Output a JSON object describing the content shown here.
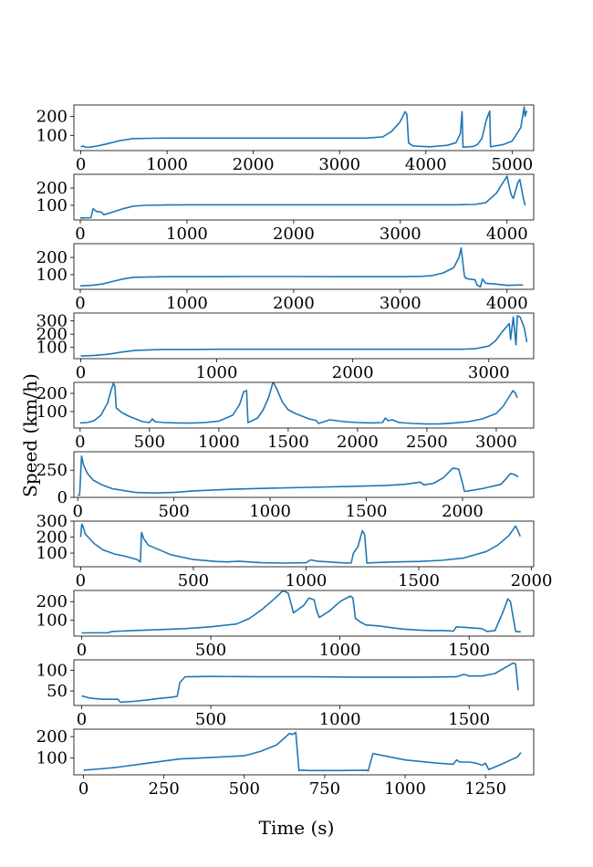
{
  "figure": {
    "xlabel": "Time (s)",
    "ylabel": "Speed (km/h)"
  },
  "chart_data": [
    {
      "type": "line",
      "color": "#1f77b4",
      "xlim": [
        -80,
        5250
      ],
      "ylim": [
        20,
        260
      ],
      "xticks": [
        0,
        1000,
        2000,
        3000,
        4000,
        5000
      ],
      "yticks": [
        100,
        200
      ],
      "x": [
        0,
        30,
        60,
        100,
        200,
        300,
        450,
        600,
        800,
        1000,
        1500,
        2000,
        2500,
        3000,
        3300,
        3500,
        3600,
        3700,
        3760,
        3780,
        3800,
        3850,
        3950,
        4050,
        4150,
        4250,
        4350,
        4400,
        4420,
        4430,
        4500,
        4550,
        4600,
        4650,
        4700,
        4740,
        4750,
        4800,
        4900,
        5000,
        5100,
        5140,
        5150,
        5170
      ],
      "y": [
        40,
        44,
        37,
        38,
        45,
        55,
        72,
        83,
        85,
        86,
        86,
        86,
        86,
        86,
        86,
        92,
        120,
        170,
        225,
        210,
        60,
        45,
        42,
        40,
        44,
        48,
        62,
        110,
        225,
        38,
        40,
        42,
        52,
        85,
        180,
        228,
        40,
        44,
        52,
        70,
        140,
        250,
        200,
        230
      ]
    },
    {
      "type": "line",
      "color": "#1f77b4",
      "xlim": [
        -60,
        4250
      ],
      "ylim": [
        15,
        280
      ],
      "xticks": [
        0,
        1000,
        2000,
        3000,
        4000
      ],
      "yticks": [
        100,
        200
      ],
      "x": [
        0,
        100,
        120,
        150,
        200,
        220,
        300,
        400,
        500,
        600,
        800,
        1000,
        1500,
        2000,
        2500,
        3000,
        3500,
        3700,
        3800,
        3900,
        3950,
        4000,
        4020,
        4040,
        4060,
        4100,
        4120,
        4150,
        4170
      ],
      "y": [
        26,
        28,
        80,
        65,
        60,
        45,
        60,
        80,
        95,
        100,
        102,
        103,
        103,
        103,
        103,
        103,
        103,
        105,
        115,
        170,
        220,
        270,
        210,
        160,
        140,
        230,
        250,
        150,
        100
      ]
    },
    {
      "type": "line",
      "color": "#1f77b4",
      "xlim": [
        -60,
        4250
      ],
      "ylim": [
        15,
        280
      ],
      "xticks": [
        0,
        1000,
        2000,
        3000,
        4000
      ],
      "yticks": [
        100,
        200
      ],
      "x": [
        0,
        100,
        200,
        300,
        400,
        500,
        800,
        1000,
        1500,
        2000,
        2500,
        3000,
        3200,
        3300,
        3400,
        3500,
        3550,
        3570,
        3600,
        3610,
        3640,
        3700,
        3720,
        3750,
        3770,
        3800,
        3900,
        4000,
        4100,
        4150
      ],
      "y": [
        35,
        38,
        45,
        60,
        75,
        85,
        88,
        88,
        89,
        89,
        88,
        88,
        90,
        95,
        110,
        140,
        200,
        255,
        95,
        80,
        75,
        70,
        40,
        28,
        75,
        50,
        45,
        38,
        40,
        40
      ]
    },
    {
      "type": "line",
      "color": "#1f77b4",
      "xlim": [
        -50,
        3330
      ],
      "ylim": [
        15,
        360
      ],
      "xticks": [
        0,
        1000,
        2000,
        3000
      ],
      "yticks": [
        100,
        200,
        300
      ],
      "x": [
        0,
        50,
        100,
        200,
        300,
        400,
        600,
        800,
        1000,
        1500,
        2000,
        2500,
        2800,
        2900,
        3000,
        3050,
        3100,
        3150,
        3160,
        3180,
        3200,
        3210,
        3230,
        3260,
        3280
      ],
      "y": [
        35,
        37,
        40,
        48,
        65,
        78,
        85,
        85,
        86,
        86,
        86,
        86,
        86,
        90,
        110,
        150,
        220,
        280,
        160,
        330,
        120,
        340,
        330,
        250,
        140
      ]
    },
    {
      "type": "line",
      "color": "#1f77b4",
      "xlim": [
        -45,
        3270
      ],
      "ylim": [
        10,
        260
      ],
      "xticks": [
        0,
        500,
        1000,
        1500,
        2000,
        2500,
        3000
      ],
      "yticks": [
        100,
        200
      ],
      "x": [
        0,
        50,
        100,
        150,
        200,
        220,
        240,
        250,
        260,
        300,
        350,
        400,
        450,
        500,
        520,
        540,
        600,
        700,
        800,
        900,
        1000,
        1100,
        1150,
        1180,
        1200,
        1210,
        1240,
        1280,
        1320,
        1360,
        1390,
        1400,
        1420,
        1460,
        1500,
        1550,
        1600,
        1650,
        1700,
        1720,
        1800,
        1900,
        2000,
        2100,
        2180,
        2200,
        2220,
        2250,
        2300,
        2400,
        2500,
        2600,
        2700,
        2800,
        2900,
        3000,
        3050,
        3100,
        3120,
        3140,
        3150
      ],
      "y": [
        38,
        40,
        50,
        80,
        150,
        210,
        255,
        240,
        120,
        95,
        75,
        60,
        45,
        40,
        60,
        45,
        40,
        38,
        37,
        40,
        48,
        80,
        140,
        210,
        215,
        40,
        50,
        65,
        110,
        180,
        260,
        250,
        220,
        150,
        110,
        90,
        75,
        60,
        52,
        35,
        55,
        45,
        40,
        38,
        40,
        65,
        50,
        55,
        40,
        35,
        32,
        33,
        38,
        45,
        60,
        90,
        130,
        190,
        215,
        200,
        175
      ]
    },
    {
      "type": "line",
      "color": "#1f77b4",
      "xlim": [
        -20,
        2370
      ],
      "ylim": [
        0,
        420
      ],
      "xticks": [
        0,
        500,
        1000,
        1500,
        2000
      ],
      "yticks": [
        0,
        250
      ],
      "x": [
        0,
        10,
        20,
        30,
        50,
        80,
        120,
        180,
        250,
        300,
        400,
        500,
        600,
        800,
        1000,
        1200,
        1400,
        1600,
        1700,
        1780,
        1800,
        1850,
        1900,
        1950,
        1980,
        2000,
        2010,
        2030,
        2100,
        2200,
        2250,
        2270,
        2290
      ],
      "y": [
        20,
        22,
        380,
        300,
        220,
        160,
        120,
        80,
        60,
        45,
        40,
        45,
        60,
        75,
        85,
        92,
        100,
        110,
        120,
        140,
        115,
        130,
        180,
        270,
        260,
        130,
        55,
        60,
        80,
        120,
        220,
        210,
        190
      ]
    },
    {
      "type": "line",
      "color": "#1f77b4",
      "xlim": [
        -30,
        2010
      ],
      "ylim": [
        15,
        300
      ],
      "xticks": [
        0,
        500,
        1000,
        1500,
        2000
      ],
      "yticks": [
        100,
        200,
        300
      ],
      "x": [
        0,
        5,
        10,
        20,
        60,
        100,
        150,
        200,
        250,
        265,
        270,
        280,
        300,
        400,
        500,
        600,
        650,
        700,
        800,
        900,
        1000,
        1020,
        1050,
        1100,
        1150,
        1200,
        1210,
        1230,
        1250,
        1260,
        1270,
        1300,
        1400,
        1500,
        1600,
        1700,
        1800,
        1850,
        1900,
        1930,
        1940,
        1950
      ],
      "y": [
        200,
        280,
        270,
        220,
        160,
        120,
        95,
        80,
        60,
        45,
        230,
        190,
        150,
        90,
        60,
        48,
        45,
        50,
        40,
        38,
        40,
        58,
        50,
        45,
        40,
        38,
        100,
        140,
        240,
        215,
        38,
        40,
        45,
        48,
        55,
        70,
        110,
        150,
        210,
        270,
        240,
        205
      ]
    },
    {
      "type": "line",
      "color": "#1f77b4",
      "xlim": [
        -30,
        1750
      ],
      "ylim": [
        15,
        260
      ],
      "xticks": [
        0,
        500,
        1000,
        1500
      ],
      "yticks": [
        100,
        200
      ],
      "x": [
        0,
        100,
        120,
        200,
        300,
        400,
        500,
        600,
        650,
        700,
        750,
        780,
        800,
        820,
        860,
        880,
        900,
        910,
        920,
        960,
        1000,
        1040,
        1050,
        1060,
        1080,
        1100,
        1150,
        1200,
        1250,
        1300,
        1350,
        1400,
        1440,
        1450,
        1500,
        1550,
        1570,
        1600,
        1630,
        1650,
        1660,
        1680,
        1700
      ],
      "y": [
        32,
        33,
        40,
        45,
        50,
        55,
        65,
        80,
        110,
        160,
        220,
        260,
        245,
        140,
        180,
        220,
        210,
        150,
        115,
        150,
        200,
        230,
        220,
        110,
        90,
        75,
        70,
        60,
        52,
        48,
        45,
        45,
        42,
        65,
        60,
        55,
        40,
        45,
        140,
        215,
        200,
        40,
        38
      ]
    },
    {
      "type": "line",
      "color": "#1f77b4",
      "xlim": [
        -30,
        1750
      ],
      "ylim": [
        15,
        125
      ],
      "xticks": [
        0,
        500,
        1000,
        1500
      ],
      "yticks": [
        50,
        100
      ],
      "x": [
        0,
        30,
        80,
        140,
        150,
        200,
        250,
        300,
        350,
        370,
        380,
        400,
        500,
        700,
        900,
        1100,
        1300,
        1450,
        1480,
        1500,
        1550,
        1600,
        1650,
        1670,
        1680,
        1690
      ],
      "y": [
        38,
        33,
        30,
        30,
        23,
        25,
        28,
        32,
        35,
        37,
        70,
        84,
        85,
        84,
        84,
        83,
        83,
        84,
        90,
        86,
        86,
        92,
        110,
        117,
        115,
        52
      ]
    },
    {
      "type": "line",
      "color": "#1f77b4",
      "xlim": [
        -30,
        1400
      ],
      "ylim": [
        20,
        235
      ],
      "xticks": [
        0,
        250,
        500,
        750,
        1000,
        1250
      ],
      "yticks": [
        100,
        200
      ],
      "x": [
        0,
        50,
        100,
        200,
        300,
        400,
        500,
        550,
        600,
        630,
        640,
        650,
        660,
        670,
        680,
        700,
        800,
        880,
        885,
        900,
        1000,
        1100,
        1150,
        1160,
        1170,
        1200,
        1220,
        1240,
        1250,
        1260,
        1300,
        1350,
        1360
      ],
      "y": [
        42,
        48,
        55,
        75,
        95,
        102,
        110,
        130,
        160,
        200,
        215,
        210,
        220,
        40,
        42,
        40,
        40,
        42,
        38,
        120,
        90,
        75,
        70,
        90,
        80,
        80,
        75,
        65,
        75,
        45,
        70,
        105,
        125
      ]
    }
  ]
}
